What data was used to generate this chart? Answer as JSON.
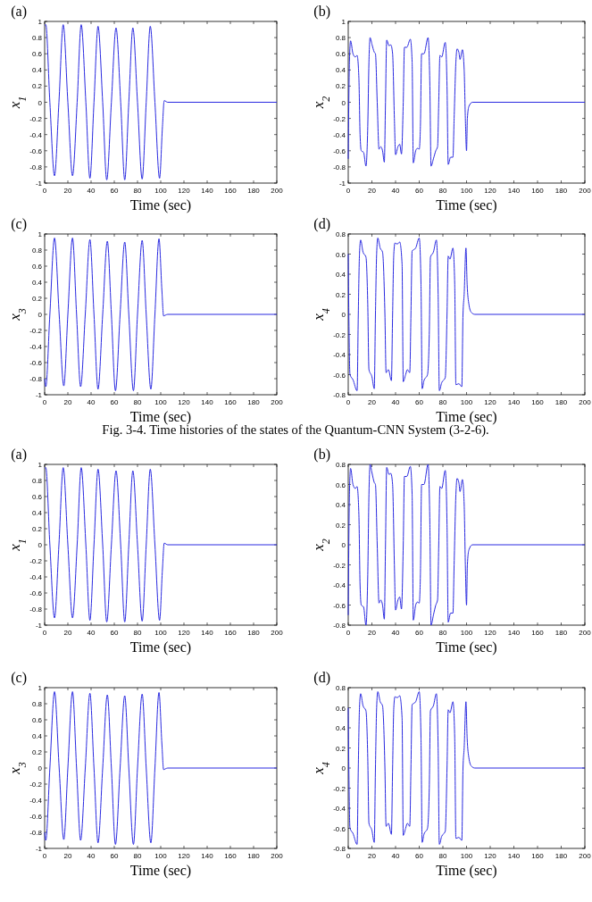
{
  "chart_data": [
    {
      "type": "line",
      "xlabel": "Time (sec)",
      "ylabel": "x$_{1}$",
      "annotations": [
        "(a)"
      ],
      "xlim": [
        0,
        200
      ],
      "ylim": [
        -1,
        1
      ],
      "xticks": [
        0,
        20,
        40,
        60,
        80,
        100,
        120,
        140,
        160,
        180,
        200
      ],
      "yticks": [
        -1,
        -0.8,
        -0.6,
        -0.4,
        -0.2,
        0,
        0.2,
        0.4,
        0.6,
        0.8,
        1
      ],
      "x": [
        0,
        1,
        4.5,
        8.5,
        12.3,
        16,
        20,
        24,
        28,
        31.5,
        35.5,
        39,
        42.5,
        46,
        50,
        53.5,
        57.5,
        61.5,
        65.5,
        69,
        72.5,
        76,
        80,
        84,
        87.5,
        91,
        95,
        99,
        101.5,
        103,
        106,
        200
      ],
      "series": [
        {
          "color": "#2a2ae0",
          "values": [
            0.95,
            0.96,
            0,
            -0.91,
            0,
            0.96,
            0,
            -0.91,
            0,
            0.96,
            0,
            -0.94,
            0,
            0.94,
            0,
            -0.96,
            0,
            0.92,
            0,
            -0.96,
            0,
            0.92,
            0,
            -0.95,
            0,
            0.94,
            0,
            -0.94,
            -0.3,
            0.02,
            0,
            0
          ]
        }
      ]
    },
    {
      "type": "line",
      "xlabel": "Time (sec)",
      "ylabel": "x$_{2}$",
      "annotations": [
        "(b)"
      ],
      "xlim": [
        0,
        200
      ],
      "ylim": [
        -1,
        1
      ],
      "xticks": [
        0,
        20,
        40,
        60,
        80,
        100,
        120,
        140,
        160,
        180,
        200
      ],
      "yticks": [
        -1,
        -0.8,
        -0.6,
        -0.4,
        -0.2,
        0,
        0.2,
        0.4,
        0.6,
        0.8,
        1
      ],
      "x": [
        0,
        1,
        2,
        4,
        6,
        7.5,
        9,
        10,
        11,
        13,
        15,
        16.5,
        17.5,
        18.5,
        20,
        22,
        23,
        24.5,
        26,
        27.5,
        29,
        30.5,
        31.5,
        32.5,
        34.5,
        36,
        37.5,
        39,
        40,
        42,
        43.5,
        45,
        46.5,
        47.5,
        49.5,
        52.5,
        54,
        55,
        57,
        58.5,
        60,
        61,
        62,
        64,
        67.5,
        69,
        70,
        72,
        74,
        75.5,
        76.5,
        77.5,
        79,
        82,
        83.5,
        84.5,
        86.5,
        88.5,
        89.5,
        91,
        92,
        93.5,
        94.5,
        96.5,
        98,
        99,
        100,
        100.7,
        102,
        105,
        200
      ],
      "series": [
        {
          "color": "#2a2ae0",
          "values": [
            -0.7,
            0.5,
            0.76,
            0.6,
            0.56,
            0.58,
            0.3,
            -0.4,
            -0.6,
            -0.62,
            -0.79,
            -0.3,
            0.5,
            0.8,
            0.72,
            0.62,
            0.6,
            0,
            -0.58,
            -0.55,
            -0.6,
            -0.74,
            0,
            0.77,
            0.7,
            0.71,
            0.6,
            -0.2,
            -0.65,
            -0.55,
            -0.52,
            -0.64,
            0,
            0.68,
            0.68,
            0.78,
            0.5,
            -0.75,
            -0.6,
            -0.57,
            -0.58,
            -0.3,
            0.6,
            0.6,
            0.8,
            0.2,
            -0.79,
            -0.7,
            -0.6,
            -0.55,
            0,
            0.58,
            0.56,
            0.74,
            0.2,
            -0.77,
            -0.68,
            -0.68,
            -0.2,
            0.5,
            0.66,
            0.62,
            0.53,
            0.65,
            0.4,
            -0.2,
            -0.6,
            -0.2,
            -0.05,
            0,
            0
          ]
        }
      ]
    },
    {
      "type": "line",
      "xlabel": "Time (sec)",
      "ylabel": "x$_{3}$",
      "annotations": [
        "(c)"
      ],
      "xlim": [
        0,
        200
      ],
      "ylim": [
        -1,
        1
      ],
      "xticks": [
        0,
        20,
        40,
        60,
        80,
        100,
        120,
        140,
        160,
        180,
        200
      ],
      "yticks": [
        -1,
        -0.8,
        -0.6,
        -0.4,
        -0.2,
        0,
        0.2,
        0.4,
        0.6,
        0.8,
        1
      ],
      "x": [
        0,
        1,
        4.5,
        8.5,
        12.5,
        16.5,
        20,
        24,
        27.5,
        31,
        35,
        39,
        42.5,
        46,
        50,
        54,
        57.5,
        61,
        65,
        69,
        72.5,
        76.5,
        80,
        84,
        87.5,
        91.5,
        95,
        98.5,
        101,
        102.5,
        104,
        106,
        200
      ],
      "series": [
        {
          "color": "#2a2ae0",
          "values": [
            -0.8,
            -0.9,
            0,
            0.95,
            0,
            -0.89,
            0,
            0.95,
            0,
            -0.9,
            0,
            0.93,
            0,
            -0.93,
            0,
            0.91,
            0,
            -0.95,
            0,
            0.9,
            0,
            -0.95,
            0,
            0.92,
            0,
            -0.93,
            0,
            0.94,
            0.3,
            -0.02,
            -0.01,
            0,
            0
          ]
        }
      ]
    },
    {
      "type": "line",
      "xlabel": "Time (sec)",
      "ylabel": "x$_{4}$",
      "annotations": [
        "(d)",
        "Fig. 3-4. Time histories of the states of the Quantum-CNN System (3-2-6)."
      ],
      "xlim": [
        0,
        200
      ],
      "ylim": [
        -0.8,
        0.8
      ],
      "xticks": [
        0,
        20,
        40,
        60,
        80,
        100,
        120,
        140,
        160,
        180,
        200
      ],
      "yticks": [
        -0.8,
        -0.6,
        -0.4,
        -0.2,
        0,
        0.2,
        0.4,
        0.6,
        0.8
      ],
      "x": [
        0,
        0.5,
        1.5,
        4,
        7.5,
        8.5,
        9.5,
        10.5,
        12.5,
        15,
        16.5,
        17.5,
        20,
        22,
        23,
        24,
        25,
        27,
        29,
        31,
        32,
        34,
        36.5,
        37.5,
        38.5,
        39.5,
        41.5,
        43.5,
        45.5,
        46.5,
        48.5,
        50,
        52,
        53,
        54,
        57,
        60,
        61.5,
        62.5,
        64,
        67,
        68.5,
        69.5,
        72,
        74.5,
        76,
        77,
        79,
        82,
        83.5,
        84.5,
        86,
        88.5,
        90,
        91,
        93.5,
        96,
        97,
        98,
        99.5,
        100.5,
        102,
        104,
        107,
        200
      ],
      "series": [
        {
          "color": "#2a2ae0",
          "values": [
            0.6,
            0,
            -0.6,
            -0.65,
            -0.76,
            0,
            0.6,
            0.74,
            0.62,
            0.57,
            0.1,
            -0.55,
            -0.62,
            -0.74,
            0,
            0.6,
            0.76,
            0.66,
            0.62,
            0,
            -0.58,
            -0.55,
            -0.66,
            0,
            0.6,
            0.71,
            0.7,
            0.72,
            0.5,
            -0.67,
            -0.6,
            -0.55,
            -0.58,
            0,
            0.63,
            0.66,
            0.76,
            0.3,
            -0.74,
            -0.66,
            -0.6,
            -0.2,
            0.57,
            0.62,
            0.74,
            0.2,
            -0.76,
            -0.68,
            -0.63,
            0,
            0.58,
            0.55,
            0.66,
            0.3,
            -0.7,
            -0.69,
            -0.72,
            0,
            0.2,
            0.66,
            0.3,
            0.1,
            0.02,
            0,
            0
          ]
        }
      ]
    },
    {
      "type": "line",
      "xlabel": "Time (sec)",
      "ylabel": "x$_{1}$",
      "annotations": [
        "(a)"
      ],
      "xlim": [
        0,
        200
      ],
      "ylim": [
        -1,
        1
      ],
      "xticks": [
        0,
        20,
        40,
        60,
        80,
        100,
        120,
        140,
        160,
        180,
        200
      ],
      "yticks": [
        -1,
        -0.8,
        -0.6,
        -0.4,
        -0.2,
        0,
        0.2,
        0.4,
        0.6,
        0.8,
        1
      ],
      "x": [
        0,
        1,
        4.5,
        8.5,
        12.3,
        16,
        20,
        24,
        28,
        31.5,
        35.5,
        39,
        42.5,
        46,
        50,
        53.5,
        57.5,
        61.5,
        65.5,
        69,
        72.5,
        76,
        80,
        84,
        87.5,
        91,
        95,
        99,
        101.5,
        103,
        106,
        200
      ],
      "series": [
        {
          "color": "#2a2ae0",
          "values": [
            0.95,
            0.96,
            0,
            -0.91,
            0,
            0.96,
            0,
            -0.91,
            0,
            0.96,
            0,
            -0.94,
            0,
            0.94,
            0,
            -0.96,
            0,
            0.92,
            0,
            -0.96,
            0,
            0.92,
            0,
            -0.95,
            0,
            0.94,
            0,
            -0.94,
            -0.3,
            0.02,
            0,
            0
          ]
        }
      ]
    },
    {
      "type": "line",
      "xlabel": "Time (sec)",
      "ylabel": "x$_{2}$",
      "annotations": [
        "(b)"
      ],
      "xlim": [
        0,
        200
      ],
      "ylim": [
        -0.8,
        0.8
      ],
      "xticks": [
        0,
        20,
        40,
        60,
        80,
        100,
        120,
        140,
        160,
        180,
        200
      ],
      "yticks": [
        -0.8,
        -0.6,
        -0.4,
        -0.2,
        0,
        0.2,
        0.4,
        0.6,
        0.8
      ],
      "x": [
        0,
        1,
        2,
        4,
        6,
        7.5,
        9,
        10,
        11,
        13,
        15,
        16.5,
        17.5,
        18.5,
        20,
        22,
        23,
        24.5,
        26,
        27.5,
        29,
        30.5,
        31.5,
        32.5,
        34.5,
        36,
        37.5,
        39,
        40,
        42,
        43.5,
        45,
        46.5,
        47.5,
        49.5,
        52.5,
        54,
        55,
        57,
        58.5,
        60,
        61,
        62,
        64,
        67.5,
        69,
        70,
        72,
        74,
        75.5,
        76.5,
        77.5,
        79,
        82,
        83.5,
        84.5,
        86.5,
        88.5,
        89.5,
        91,
        92,
        93.5,
        94.5,
        96.5,
        98,
        99,
        100,
        100.7,
        102,
        105,
        200
      ],
      "series": [
        {
          "color": "#2a2ae0",
          "values": [
            -0.7,
            0.5,
            0.76,
            0.6,
            0.56,
            0.58,
            0.3,
            -0.4,
            -0.6,
            -0.62,
            -0.8,
            -0.3,
            0.5,
            0.8,
            0.72,
            0.62,
            0.6,
            0,
            -0.58,
            -0.55,
            -0.6,
            -0.74,
            0,
            0.77,
            0.7,
            0.71,
            0.6,
            -0.2,
            -0.65,
            -0.55,
            -0.52,
            -0.64,
            0,
            0.68,
            0.68,
            0.78,
            0.5,
            -0.75,
            -0.6,
            -0.57,
            -0.58,
            -0.3,
            0.6,
            0.6,
            0.8,
            0.2,
            -0.8,
            -0.7,
            -0.6,
            -0.55,
            0,
            0.58,
            0.56,
            0.74,
            0.2,
            -0.77,
            -0.68,
            -0.68,
            -0.2,
            0.5,
            0.66,
            0.62,
            0.53,
            0.65,
            0.4,
            -0.2,
            -0.6,
            -0.2,
            -0.05,
            0,
            0
          ]
        }
      ]
    },
    {
      "type": "line",
      "xlabel": "Time (sec)",
      "ylabel": "x$_{3}$",
      "annotations": [
        "(c)"
      ],
      "xlim": [
        0,
        200
      ],
      "ylim": [
        -1,
        1
      ],
      "xticks": [
        0,
        20,
        40,
        60,
        80,
        100,
        120,
        140,
        160,
        180,
        200
      ],
      "yticks": [
        -1,
        -0.8,
        -0.6,
        -0.4,
        -0.2,
        0,
        0.2,
        0.4,
        0.6,
        0.8,
        1
      ],
      "x": [
        0,
        1,
        4.5,
        8.5,
        12.5,
        16.5,
        20,
        24,
        27.5,
        31,
        35,
        39,
        42.5,
        46,
        50,
        54,
        57.5,
        61,
        65,
        69,
        72.5,
        76.5,
        80,
        84,
        87.5,
        91.5,
        95,
        98.5,
        101,
        102.5,
        104,
        106,
        200
      ],
      "series": [
        {
          "color": "#2a2ae0",
          "values": [
            -0.8,
            -0.9,
            0,
            0.95,
            0,
            -0.89,
            0,
            0.95,
            0,
            -0.9,
            0,
            0.93,
            0,
            -0.93,
            0,
            0.91,
            0,
            -0.95,
            0,
            0.9,
            0,
            -0.95,
            0,
            0.92,
            0,
            -0.93,
            0,
            0.94,
            0.3,
            -0.02,
            -0.01,
            0,
            0
          ]
        }
      ]
    },
    {
      "type": "line",
      "xlabel": "Time (sec)",
      "ylabel": "x$_{4}$",
      "annotations": [
        "(d)"
      ],
      "xlim": [
        0,
        200
      ],
      "ylim": [
        -0.8,
        0.8
      ],
      "xticks": [
        0,
        20,
        40,
        60,
        80,
        100,
        120,
        140,
        160,
        180,
        200
      ],
      "yticks": [
        -0.8,
        -0.6,
        -0.4,
        -0.2,
        0,
        0.2,
        0.4,
        0.6,
        0.8
      ],
      "x": [
        0,
        0.5,
        1.5,
        4,
        7.5,
        8.5,
        9.5,
        10.5,
        12.5,
        15,
        16.5,
        17.5,
        20,
        22,
        23,
        24,
        25,
        27,
        29,
        31,
        32,
        34,
        36.5,
        37.5,
        38.5,
        39.5,
        41.5,
        43.5,
        45.5,
        46.5,
        48.5,
        50,
        52,
        53,
        54,
        57,
        60,
        61.5,
        62.5,
        64,
        67,
        68.5,
        69.5,
        72,
        74.5,
        76,
        77,
        79,
        82,
        83.5,
        84.5,
        86,
        88.5,
        90,
        91,
        93.5,
        96,
        97,
        98,
        99.5,
        100.5,
        102,
        104,
        107,
        200
      ],
      "series": [
        {
          "color": "#2a2ae0",
          "values": [
            0.6,
            0,
            -0.6,
            -0.65,
            -0.76,
            0,
            0.6,
            0.74,
            0.62,
            0.57,
            0.1,
            -0.55,
            -0.62,
            -0.74,
            0,
            0.6,
            0.76,
            0.66,
            0.62,
            0,
            -0.58,
            -0.55,
            -0.66,
            0,
            0.6,
            0.71,
            0.7,
            0.72,
            0.5,
            -0.67,
            -0.6,
            -0.55,
            -0.58,
            0,
            0.63,
            0.66,
            0.76,
            0.3,
            -0.74,
            -0.66,
            -0.6,
            -0.2,
            0.57,
            0.62,
            0.74,
            0.2,
            -0.76,
            -0.68,
            -0.63,
            0,
            0.58,
            0.55,
            0.66,
            0.3,
            -0.7,
            -0.69,
            -0.72,
            0,
            0.2,
            0.66,
            0.3,
            0.1,
            0.02,
            0,
            0
          ]
        }
      ]
    }
  ]
}
